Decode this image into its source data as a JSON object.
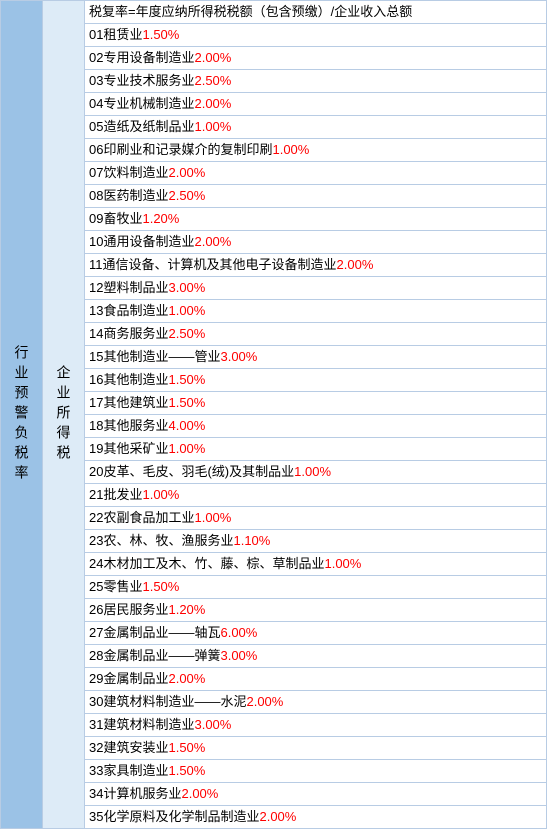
{
  "left_label": "行业预警负税率",
  "mid_label": "企业所得税",
  "header": "税复率=年度应纳所得税税额（包含预缴）/企业收入总额",
  "rows": [
    {
      "num": "01",
      "label": " 租赁业 ",
      "pct": "1.50%"
    },
    {
      "num": "02",
      "label": " 专用设备制造业 ",
      "pct": "2.00%"
    },
    {
      "num": "03",
      "label": " 专业技术服务业 ",
      "pct": "2.50%"
    },
    {
      "num": "04",
      "label": " 专业机械制造业 ",
      "pct": "2.00%"
    },
    {
      "num": "05",
      "label": " 造纸及纸制品业 ",
      "pct": "1.00%"
    },
    {
      "num": "06",
      "label": " 印刷业和记录媒介的复制印刷 ",
      "pct": "1.00%"
    },
    {
      "num": "07",
      "label": " 饮料制造业 ",
      "pct": "2.00%"
    },
    {
      "num": "08",
      "label": " 医药制造业 ",
      "pct": "2.50%"
    },
    {
      "num": "09",
      "label": " 畜牧业 ",
      "pct": "1.20%"
    },
    {
      "num": "10",
      "label": " 通用设备制造业 ",
      "pct": "2.00%"
    },
    {
      "num": "11",
      "label": " 通信设备、计算机及其他电子设备制造业",
      "pct": "2.00%"
    },
    {
      "num": "12",
      "label": " 塑料制品业 ",
      "pct": "3.00%"
    },
    {
      "num": "13",
      "label": " 食品制造业 ",
      "pct": "1.00%"
    },
    {
      "num": "14",
      "label": " 商务服务业 ",
      "pct": "2.50%"
    },
    {
      "num": "15",
      "label": " 其他制造业——管业 ",
      "pct": "3.00%"
    },
    {
      "num": "16",
      "label": " 其他制造业 ",
      "pct": "1.50%"
    },
    {
      "num": "17",
      "label": " 其他建筑业 ",
      "pct": "1.50%"
    },
    {
      "num": "18",
      "label": " 其他服务业 ",
      "pct": "4.00%"
    },
    {
      "num": "19",
      "label": " 其他采矿业 ",
      "pct": "1.00%"
    },
    {
      "num": "20",
      "label": " 皮革、毛皮、羽毛(绒)及其制品业",
      "pct": "1.00%"
    },
    {
      "num": "21",
      "label": " 批发业 ",
      "pct": "1.00%"
    },
    {
      "num": "22",
      "label": " 农副食品加工业 ",
      "pct": "1.00%"
    },
    {
      "num": "23",
      "label": " 农、林、牧、渔服务业 ",
      "pct": "1.10%"
    },
    {
      "num": "24",
      "label": " 木材加工及木、竹、藤、棕、草制品业 ",
      "pct": "1.00%"
    },
    {
      "num": "25",
      "label": " 零售业 ",
      "pct": "1.50%"
    },
    {
      "num": "26",
      "label": " 居民服务业 ",
      "pct": "1.20%"
    },
    {
      "num": "27",
      "label": " 金属制品业——轴瓦 ",
      "pct": "6.00%"
    },
    {
      "num": "28",
      "label": " 金属制品业——弹簧 ",
      "pct": "3.00%"
    },
    {
      "num": "29",
      "label": "金属制品业 ",
      "pct": "2.00%"
    },
    {
      "num": "30",
      "label": " 建筑材料制造业——水泥 ",
      "pct": "2.00%"
    },
    {
      "num": "31",
      "label": " 建筑材料制造业 ",
      "pct": "3.00%"
    },
    {
      "num": "32",
      "label": " 建筑安装业 ",
      "pct": "1.50%"
    },
    {
      "num": "33",
      "label": " 家具制造业 ",
      "pct": "1.50%"
    },
    {
      "num": "34",
      "label": " 计算机服务业 ",
      "pct": "2.00%"
    },
    {
      "num": "35",
      "label": " 化学原料及化学制品制造业 ",
      "pct": "2.00%"
    }
  ]
}
